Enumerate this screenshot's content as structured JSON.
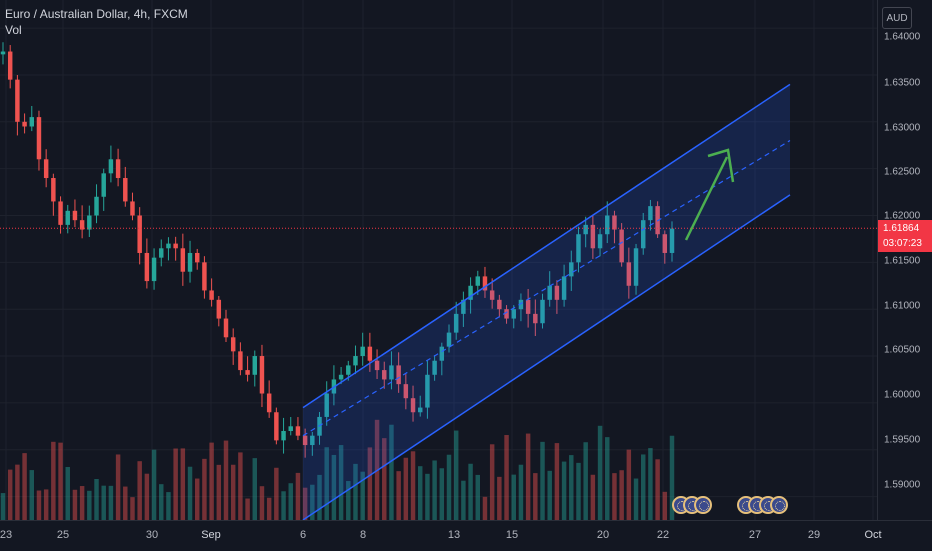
{
  "legend": {
    "symbol": "Euro / Australian Dollar, 4h, FXCM",
    "indicator": "Vol"
  },
  "price_axis": {
    "currency": "AUD",
    "ticks": [
      "1.64000",
      "1.63500",
      "1.63000",
      "1.62500",
      "1.62000",
      "1.61500",
      "1.61000",
      "1.60500",
      "1.60000",
      "1.59500",
      "1.59000"
    ],
    "last_price": "1.61864",
    "countdown": "03:07:23"
  },
  "time_axis": {
    "ticks": [
      "23",
      "25",
      "30",
      "Sep",
      "6",
      "8",
      "13",
      "15",
      "20",
      "22",
      "27",
      "29",
      "Oct"
    ]
  },
  "colors": {
    "up": "#26a69a",
    "down": "#ef5350",
    "channel": "#2962ff",
    "arrow": "#4caf50",
    "background": "#131722"
  },
  "events": {
    "group1_count": 3,
    "group2_count": 4,
    "icon": "economic-event-icon"
  },
  "chart_data": {
    "type": "candlestick",
    "symbol": "Euro / Australian Dollar",
    "timeframe": "4h",
    "source": "FXCM",
    "ylim": [
      1.5875,
      1.643
    ],
    "y_ticks": [
      1.64,
      1.635,
      1.63,
      1.625,
      1.62,
      1.615,
      1.61,
      1.605,
      1.6,
      1.595,
      1.59
    ],
    "x_tick_labels": [
      "23",
      "25",
      "30",
      "Sep",
      "6",
      "8",
      "13",
      "15",
      "20",
      "22",
      "27",
      "29",
      "Oct"
    ],
    "last_price": 1.61864,
    "close_path": [
      1.6375,
      1.6345,
      1.63,
      1.6295,
      1.6305,
      1.626,
      1.624,
      1.6215,
      1.619,
      1.6205,
      1.6195,
      1.6185,
      1.62,
      1.622,
      1.6245,
      1.626,
      1.624,
      1.6215,
      1.62,
      1.616,
      1.613,
      1.6155,
      1.6165,
      1.617,
      1.6165,
      1.614,
      1.616,
      1.615,
      1.612,
      1.611,
      1.609,
      1.607,
      1.6055,
      1.6035,
      1.603,
      1.605,
      1.601,
      1.599,
      1.596,
      1.597,
      1.5975,
      1.5965,
      1.5955,
      1.5965,
      1.5985,
      1.601,
      1.6025,
      1.603,
      1.604,
      1.605,
      1.606,
      1.6045,
      1.6035,
      1.6025,
      1.604,
      1.602,
      1.6005,
      1.599,
      1.5995,
      1.603,
      1.6045,
      1.606,
      1.6075,
      1.6095,
      1.611,
      1.6125,
      1.6135,
      1.612,
      1.611,
      1.61,
      1.609,
      1.61,
      1.611,
      1.6095,
      1.6085,
      1.611,
      1.6125,
      1.611,
      1.6135,
      1.615,
      1.618,
      1.619,
      1.6165,
      1.618,
      1.62,
      1.6185,
      1.615,
      1.6125,
      1.6165,
      1.6195,
      1.621,
      1.618,
      1.616,
      1.6186
    ],
    "channel": {
      "upper": {
        "start": 1.5995,
        "end": 1.634
      },
      "middle": {
        "start": 1.5965,
        "end": 1.628
      },
      "lower": {
        "start": 1.5875,
        "end": 1.6222
      }
    }
  }
}
